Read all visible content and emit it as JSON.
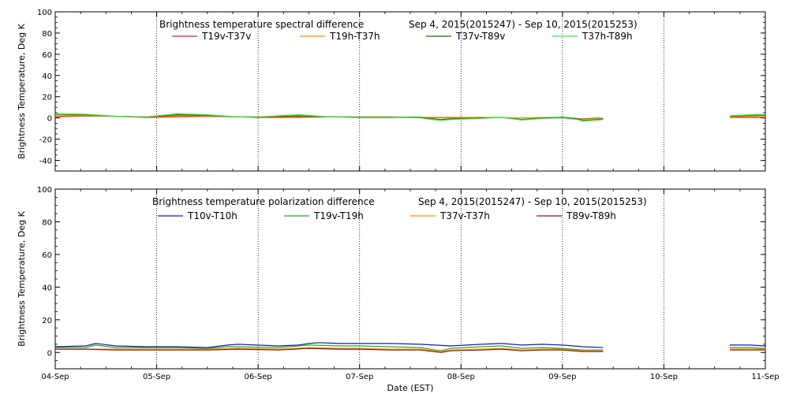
{
  "chart_data": [
    {
      "type": "line",
      "title": "Brightness temperature spectral difference",
      "date_range": "Sep  4, 2015(2015247) - Sep 10, 2015(2015253)",
      "ylabel": "Brightness Temperature, Deg K",
      "xlabel": "",
      "xlim": [
        0,
        7
      ],
      "ylim": [
        -50,
        100
      ],
      "yticks": [
        -40,
        -20,
        0,
        20,
        40,
        60,
        80,
        100
      ],
      "grid": "vertical dotted at day boundaries",
      "legend_position": "top",
      "series": [
        {
          "name": "T19v-T37v",
          "color": "#ee1c1c",
          "segments": [
            [
              [
                0,
                1
              ],
              [
                0.3,
                2
              ],
              [
                0.6,
                1.5
              ],
              [
                0.9,
                0.5
              ],
              [
                1.2,
                1
              ],
              [
                1.5,
                1.5
              ],
              [
                1.8,
                1
              ],
              [
                2.0,
                0.5
              ],
              [
                2.4,
                0.5
              ],
              [
                2.7,
                1
              ],
              [
                3.0,
                0.5
              ],
              [
                3.3,
                0.5
              ],
              [
                3.6,
                0.5
              ],
              [
                3.9,
                0
              ],
              [
                4.2,
                0.5
              ],
              [
                4.6,
                0
              ],
              [
                5.0,
                0.5
              ],
              [
                5.2,
                -1
              ],
              [
                5.35,
                0
              ],
              [
                5.4,
                -0.5
              ]
            ],
            [
              [
                6.65,
                0.5
              ],
              [
                6.85,
                0.5
              ],
              [
                7.0,
                0.5
              ]
            ]
          ]
        },
        {
          "name": "T19h-T37h",
          "color": "#ff8c00",
          "segments": [
            [
              [
                0,
                2
              ],
              [
                0.3,
                2.5
              ],
              [
                0.6,
                1.5
              ],
              [
                0.9,
                1
              ],
              [
                1.2,
                2
              ],
              [
                1.5,
                2
              ],
              [
                1.8,
                1
              ],
              [
                2.0,
                1
              ],
              [
                2.4,
                1.5
              ],
              [
                2.7,
                1
              ],
              [
                3.0,
                1
              ],
              [
                3.3,
                1
              ],
              [
                3.6,
                0.5
              ],
              [
                3.9,
                0.5
              ],
              [
                4.2,
                0.5
              ],
              [
                4.6,
                0
              ],
              [
                5.0,
                0.5
              ],
              [
                5.2,
                -1.5
              ],
              [
                5.35,
                -0.5
              ],
              [
                5.4,
                -1
              ]
            ],
            [
              [
                6.65,
                1
              ],
              [
                6.85,
                1.5
              ],
              [
                7.0,
                1
              ]
            ]
          ]
        },
        {
          "name": "T37v-T89v",
          "color": "#0a7a0a",
          "segments": [
            [
              [
                0,
                3.5
              ],
              [
                0.3,
                3
              ],
              [
                0.6,
                1.5
              ],
              [
                0.9,
                1
              ],
              [
                1.2,
                3
              ],
              [
                1.5,
                2.5
              ],
              [
                1.8,
                1
              ],
              [
                2.0,
                1
              ],
              [
                2.2,
                1.5
              ],
              [
                2.4,
                2
              ],
              [
                2.7,
                1
              ],
              [
                3.0,
                1
              ],
              [
                3.3,
                1
              ],
              [
                3.6,
                0.5
              ],
              [
                3.8,
                -1.5
              ],
              [
                3.9,
                -1
              ],
              [
                4.2,
                0
              ],
              [
                4.4,
                0.5
              ],
              [
                4.6,
                -1.5
              ],
              [
                4.8,
                0
              ],
              [
                5.0,
                0.5
              ],
              [
                5.15,
                -1
              ],
              [
                5.2,
                -2.5
              ],
              [
                5.35,
                -1.5
              ],
              [
                5.4,
                -1
              ]
            ],
            [
              [
                6.65,
                1.5
              ],
              [
                6.85,
                2.5
              ],
              [
                7.0,
                2.5
              ]
            ]
          ]
        },
        {
          "name": "T37h-T89h",
          "color": "#33ee33",
          "segments": [
            [
              [
                0,
                4
              ],
              [
                0.3,
                3.5
              ],
              [
                0.6,
                1.5
              ],
              [
                0.9,
                1
              ],
              [
                1.2,
                4
              ],
              [
                1.5,
                3
              ],
              [
                1.8,
                1
              ],
              [
                2.0,
                1
              ],
              [
                2.2,
                2
              ],
              [
                2.4,
                3
              ],
              [
                2.7,
                1
              ],
              [
                3.0,
                1
              ],
              [
                3.3,
                1
              ],
              [
                3.6,
                0
              ],
              [
                3.8,
                -2.5
              ],
              [
                3.9,
                -1.5
              ],
              [
                4.2,
                -0.5
              ],
              [
                4.4,
                0.5
              ],
              [
                4.6,
                -2
              ],
              [
                4.8,
                -0.5
              ],
              [
                5.0,
                0
              ],
              [
                5.15,
                -1.5
              ],
              [
                5.2,
                -3
              ],
              [
                5.35,
                -2
              ],
              [
                5.4,
                -1.5
              ]
            ],
            [
              [
                6.65,
                2
              ],
              [
                6.85,
                3
              ],
              [
                7.0,
                3.5
              ]
            ]
          ]
        }
      ]
    },
    {
      "type": "line",
      "title": "Brightness temperature polarization difference",
      "date_range": "Sep  4, 2015(2015247) - Sep 10, 2015(2015253)",
      "ylabel": "Brightness Temperature, Deg K",
      "xlabel": "Date (EST)",
      "xlim": [
        0,
        7
      ],
      "ylim": [
        -10,
        100
      ],
      "yticks": [
        0,
        20,
        40,
        60,
        80,
        100
      ],
      "categories": [
        "04-Sep",
        "05-Sep",
        "06-Sep",
        "07-Sep",
        "08-Sep",
        "09-Sep",
        "10-Sep",
        "11-Sep"
      ],
      "grid": "vertical dotted at day boundaries",
      "legend_position": "top",
      "series": [
        {
          "name": "T10v-T10h",
          "color": "#1a1aa6",
          "segments": [
            [
              [
                0,
                3.5
              ],
              [
                0.3,
                4
              ],
              [
                0.4,
                5.5
              ],
              [
                0.6,
                4
              ],
              [
                0.9,
                3.5
              ],
              [
                1.2,
                3.5
              ],
              [
                1.5,
                3
              ],
              [
                1.7,
                4.5
              ],
              [
                1.8,
                5
              ],
              [
                2.2,
                4
              ],
              [
                2.4,
                4.5
              ],
              [
                2.5,
                5.5
              ],
              [
                2.6,
                6
              ],
              [
                2.8,
                5.5
              ],
              [
                3.0,
                5.5
              ],
              [
                3.3,
                5.5
              ],
              [
                3.6,
                5
              ],
              [
                3.9,
                4
              ],
              [
                4.2,
                5
              ],
              [
                4.4,
                5.5
              ],
              [
                4.6,
                4.5
              ],
              [
                4.8,
                5
              ],
              [
                5.0,
                4.5
              ],
              [
                5.2,
                3.5
              ],
              [
                5.4,
                3
              ]
            ],
            [
              [
                6.65,
                4.5
              ],
              [
                6.85,
                4.5
              ],
              [
                7.0,
                4
              ]
            ]
          ]
        },
        {
          "name": "T19v-T19h",
          "color": "#1fae1f",
          "segments": [
            [
              [
                0,
                3
              ],
              [
                0.3,
                3
              ],
              [
                0.4,
                4.5
              ],
              [
                0.6,
                3
              ],
              [
                0.9,
                3
              ],
              [
                1.2,
                3
              ],
              [
                1.5,
                2.5
              ],
              [
                1.7,
                3.5
              ],
              [
                1.8,
                3.5
              ],
              [
                2.2,
                3
              ],
              [
                2.5,
                4.5
              ],
              [
                2.8,
                4
              ],
              [
                3.0,
                4
              ],
              [
                3.3,
                3.5
              ],
              [
                3.6,
                3
              ],
              [
                3.8,
                1
              ],
              [
                3.9,
                2.5
              ],
              [
                4.2,
                3.5
              ],
              [
                4.4,
                4
              ],
              [
                4.6,
                2.5
              ],
              [
                4.8,
                3
              ],
              [
                5.0,
                2.5
              ],
              [
                5.2,
                1.5
              ],
              [
                5.4,
                1.5
              ]
            ],
            [
              [
                6.65,
                3
              ],
              [
                6.85,
                3
              ],
              [
                7.0,
                2.5
              ]
            ]
          ]
        },
        {
          "name": "T37v-T37h",
          "color": "#ff8c00",
          "segments": [
            [
              [
                0,
                2
              ],
              [
                0.3,
                2
              ],
              [
                0.6,
                2
              ],
              [
                0.9,
                2
              ],
              [
                1.2,
                2
              ],
              [
                1.5,
                2
              ],
              [
                1.8,
                2.5
              ],
              [
                2.2,
                2
              ],
              [
                2.5,
                3
              ],
              [
                2.8,
                2.5
              ],
              [
                3.0,
                2.5
              ],
              [
                3.3,
                2
              ],
              [
                3.6,
                2
              ],
              [
                3.8,
                0.5
              ],
              [
                3.9,
                1.5
              ],
              [
                4.2,
                2
              ],
              [
                4.4,
                2.5
              ],
              [
                4.6,
                1.5
              ],
              [
                4.8,
                2
              ],
              [
                5.0,
                2
              ],
              [
                5.2,
                1
              ],
              [
                5.4,
                1
              ]
            ],
            [
              [
                6.65,
                2
              ],
              [
                6.85,
                2
              ],
              [
                7.0,
                2
              ]
            ]
          ]
        },
        {
          "name": "T89v-T89h",
          "color": "#8b1a1a",
          "segments": [
            [
              [
                0,
                2
              ],
              [
                0.3,
                2
              ],
              [
                0.6,
                1.5
              ],
              [
                0.9,
                1.5
              ],
              [
                1.2,
                1.5
              ],
              [
                1.5,
                1.5
              ],
              [
                1.8,
                2
              ],
              [
                2.2,
                1.5
              ],
              [
                2.5,
                2.5
              ],
              [
                2.8,
                2
              ],
              [
                3.0,
                2
              ],
              [
                3.3,
                1.5
              ],
              [
                3.6,
                1.5
              ],
              [
                3.8,
                0
              ],
              [
                3.9,
                1
              ],
              [
                4.2,
                1.5
              ],
              [
                4.4,
                2
              ],
              [
                4.6,
                1
              ],
              [
                4.8,
                1.5
              ],
              [
                5.0,
                1.5
              ],
              [
                5.2,
                0.5
              ],
              [
                5.4,
                0.5
              ]
            ],
            [
              [
                6.65,
                1.5
              ],
              [
                6.85,
                1.5
              ],
              [
                7.0,
                1.5
              ]
            ]
          ]
        }
      ]
    }
  ]
}
